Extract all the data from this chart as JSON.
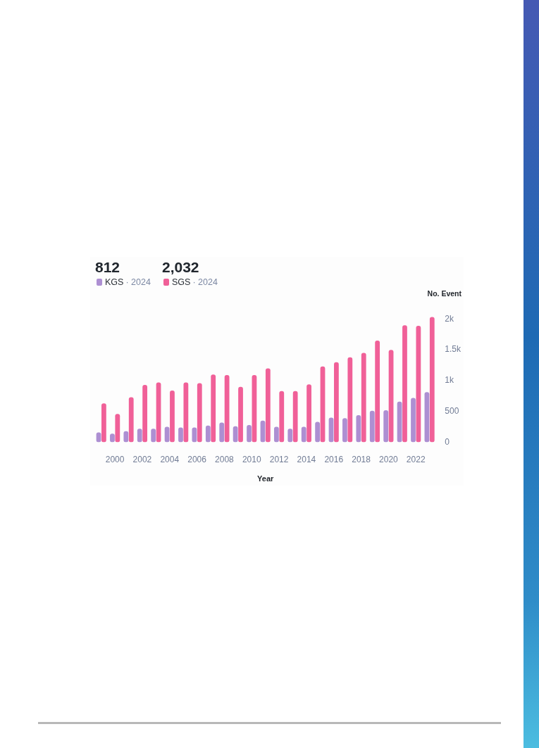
{
  "chart_data": {
    "type": "bar",
    "categories": [
      null,
      "2000",
      null,
      "2002",
      null,
      "2004",
      null,
      "2006",
      null,
      "2008",
      null,
      "2010",
      null,
      "2012",
      null,
      "2014",
      null,
      "2016",
      null,
      "2018",
      null,
      "2020",
      null,
      "2022",
      null
    ],
    "series": [
      {
        "name": "KGS",
        "color": "#ad8fd2",
        "values": [
          160,
          140,
          180,
          220,
          220,
          250,
          240,
          240,
          270,
          320,
          260,
          280,
          350,
          250,
          220,
          250,
          330,
          400,
          390,
          440,
          510,
          520,
          660,
          720,
          812
        ]
      },
      {
        "name": "SGS",
        "color": "#f06098",
        "values": [
          630,
          460,
          730,
          930,
          970,
          840,
          970,
          960,
          1100,
          1090,
          900,
          1090,
          1200,
          830,
          830,
          940,
          1230,
          1300,
          1380,
          1450,
          1650,
          1500,
          1900,
          1890,
          2032
        ]
      }
    ],
    "xlabel": "Year",
    "ylabel": "No. Event",
    "ylim": [
      0,
      2050
    ],
    "yticks": [
      0,
      500,
      {
        "value": 1000,
        "label": "1k"
      },
      {
        "value": 1500,
        "label": "1.5k"
      },
      {
        "value": 2000,
        "label": "2k"
      }
    ],
    "annotations": [
      "812",
      "· 2024",
      "2,032",
      "· 2024"
    ],
    "legend": "top left",
    "grid": false
  }
}
